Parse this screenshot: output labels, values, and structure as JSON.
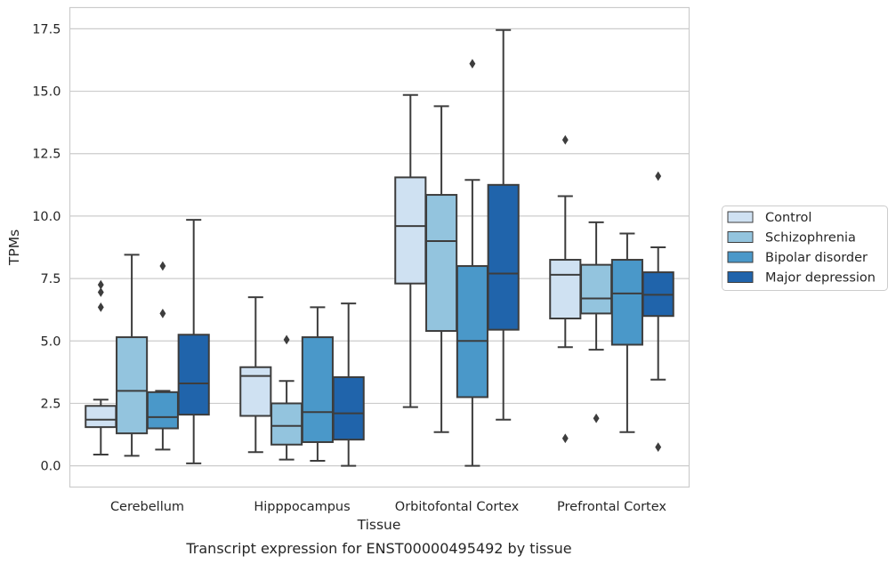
{
  "chart_data": {
    "type": "box",
    "title": "",
    "caption": "Transcript expression for ENST00000495492 by tissue",
    "xlabel": "Tissue",
    "ylabel": "TPMs",
    "ylim": [
      -0.85,
      18.35
    ],
    "yticks": [
      "0.0",
      "2.5",
      "5.0",
      "7.5",
      "10.0",
      "12.5",
      "15.0",
      "17.5"
    ],
    "ytick_values": [
      0,
      2.5,
      5,
      7.5,
      10,
      12.5,
      15,
      17.5
    ],
    "grid": "horizontal",
    "legend_position": "right",
    "categories": [
      "Cerebellum",
      "Hipppocampus",
      "Orbitofontal Cortex",
      "Prefrontal Cortex"
    ],
    "series": [
      {
        "name": "Control",
        "color": "#cfe1f2",
        "boxes": [
          {
            "whislo": 0.45,
            "q1": 1.55,
            "med": 1.85,
            "q3": 2.4,
            "whishi": 2.65,
            "fliers": [
              7.25,
              6.95,
              6.35
            ]
          },
          {
            "whislo": 0.55,
            "q1": 2.0,
            "med": 3.6,
            "q3": 3.95,
            "whishi": 6.75,
            "fliers": []
          },
          {
            "whislo": 2.35,
            "q1": 7.3,
            "med": 9.6,
            "q3": 11.55,
            "whishi": 14.85,
            "fliers": []
          },
          {
            "whislo": 4.75,
            "q1": 5.9,
            "med": 7.65,
            "q3": 8.25,
            "whishi": 10.8,
            "fliers": [
              13.05,
              1.1
            ]
          }
        ]
      },
      {
        "name": "Schizophrenia",
        "color": "#93c4de",
        "boxes": [
          {
            "whislo": 0.4,
            "q1": 1.3,
            "med": 3.0,
            "q3": 5.15,
            "whishi": 8.45,
            "fliers": []
          },
          {
            "whislo": 0.25,
            "q1": 0.85,
            "med": 1.6,
            "q3": 2.5,
            "whishi": 3.4,
            "fliers": [
              5.05
            ]
          },
          {
            "whislo": 1.35,
            "q1": 5.4,
            "med": 9.0,
            "q3": 10.85,
            "whishi": 14.4,
            "fliers": []
          },
          {
            "whislo": 4.65,
            "q1": 6.1,
            "med": 6.7,
            "q3": 8.05,
            "whishi": 9.75,
            "fliers": [
              1.9
            ]
          }
        ]
      },
      {
        "name": "Bipolar disorder",
        "color": "#4a98c9",
        "boxes": [
          {
            "whislo": 0.65,
            "q1": 1.5,
            "med": 1.95,
            "q3": 2.95,
            "whishi": 3.0,
            "fliers": [
              8.0,
              6.1
            ]
          },
          {
            "whislo": 0.2,
            "q1": 0.95,
            "med": 2.15,
            "q3": 5.15,
            "whishi": 6.35,
            "fliers": []
          },
          {
            "whislo": 0.0,
            "q1": 2.75,
            "med": 5.0,
            "q3": 8.0,
            "whishi": 11.45,
            "fliers": [
              16.1
            ]
          },
          {
            "whislo": 1.35,
            "q1": 4.85,
            "med": 6.9,
            "q3": 8.25,
            "whishi": 9.3,
            "fliers": []
          }
        ]
      },
      {
        "name": "Major depression",
        "color": "#2064ab",
        "boxes": [
          {
            "whislo": 0.1,
            "q1": 2.05,
            "med": 3.3,
            "q3": 5.25,
            "whishi": 9.85,
            "fliers": []
          },
          {
            "whislo": 0.0,
            "q1": 1.05,
            "med": 2.1,
            "q3": 3.55,
            "whishi": 6.5,
            "fliers": []
          },
          {
            "whislo": 1.85,
            "q1": 5.45,
            "med": 7.7,
            "q3": 11.25,
            "whishi": 17.45,
            "fliers": []
          },
          {
            "whislo": 3.45,
            "q1": 6.0,
            "med": 6.85,
            "q3": 7.75,
            "whishi": 8.75,
            "fliers": [
              11.6,
              0.75
            ]
          }
        ]
      }
    ]
  }
}
